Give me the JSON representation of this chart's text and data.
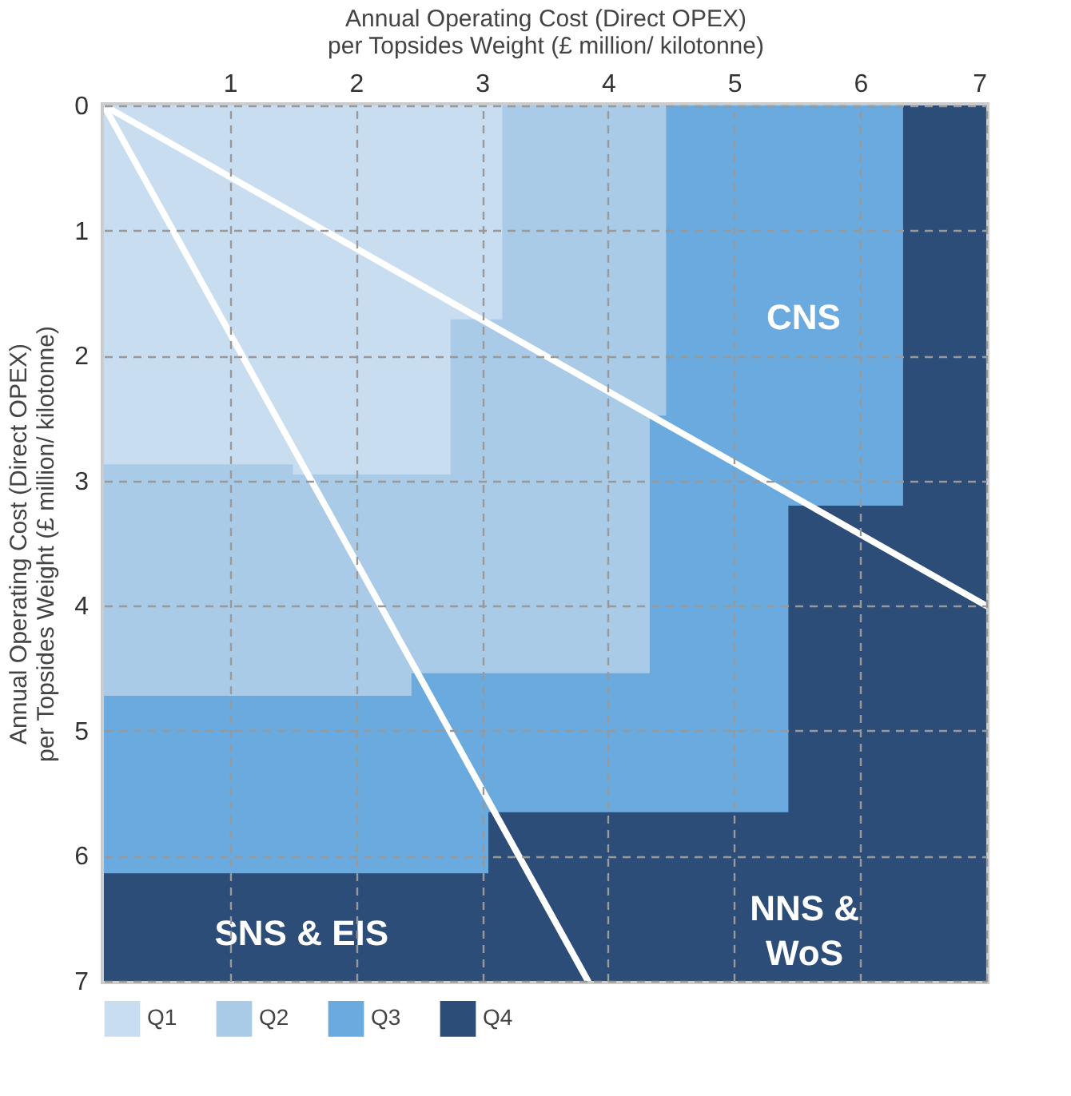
{
  "chart_data": {
    "type": "area",
    "xlabel": "Annual Operating Cost (Direct OPEX)\nper Topsides Weight (£ million/ kilotonne)",
    "ylabel": "Annual Operating Cost (Direct OPEX)\nper Topsides Weight (£ million/ kilotonne)",
    "xlim": [
      0,
      7
    ],
    "ylim": [
      7,
      0
    ],
    "xticks": [
      1,
      2,
      3,
      4,
      5,
      6,
      7
    ],
    "yticks": [
      0,
      1,
      2,
      3,
      4,
      5,
      6,
      7
    ],
    "grid": true,
    "legend": "bottom left",
    "series": [
      {
        "name": "Q1",
        "color": "#c9ddf0",
        "x": [
          0,
          1.5,
          1.5,
          2.75,
          2.75,
          3.16,
          3.16
        ],
        "values": [
          2.87,
          2.87,
          2.95,
          2.95,
          1.71,
          1.71,
          0
        ]
      },
      {
        "name": "Q2",
        "color": "#a9cbe8",
        "x": [
          0,
          2.44,
          2.44,
          4.33,
          4.33,
          4.46,
          4.46
        ],
        "values": [
          4.72,
          4.72,
          4.54,
          4.54,
          2.48,
          2.48,
          0
        ]
      },
      {
        "name": "Q3",
        "color": "#6aaade",
        "x": [
          0,
          3.05,
          3.05,
          5.43,
          5.43,
          6.34,
          6.34
        ],
        "values": [
          6.14,
          6.14,
          5.65,
          5.65,
          3.2,
          3.2,
          0
        ]
      },
      {
        "name": "Q4",
        "color": "#2c4d78",
        "x": [
          0,
          7
        ],
        "values": [
          7,
          7
        ]
      },
      {
        "type": "line",
        "color": "#ffffff",
        "x": [
          0,
          7
        ],
        "values": [
          0,
          4
        ]
      },
      {
        "type": "line",
        "color": "#ffffff",
        "x": [
          0,
          3.84
        ],
        "values": [
          0,
          7
        ]
      }
    ],
    "annotations": [
      "CNS",
      "SNS & EIS",
      "NNS &\nWoS"
    ]
  }
}
